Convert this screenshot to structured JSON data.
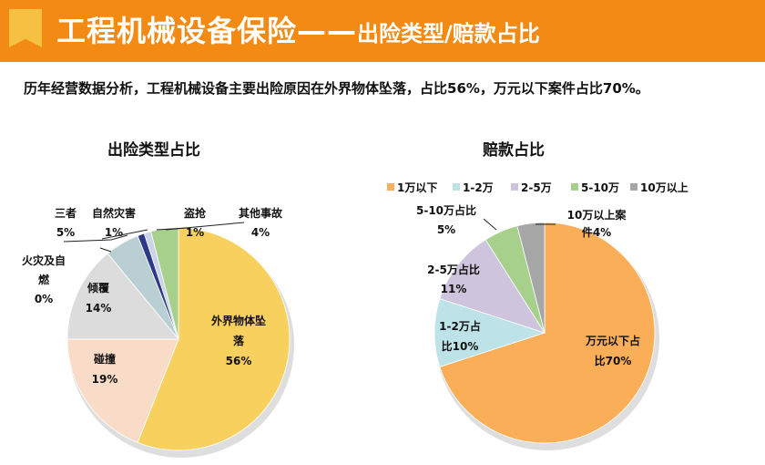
{
  "header": {
    "title_main": "工程机械设备保险——",
    "title_sub": "出险类型/赔款占比"
  },
  "summary": "历年经营数据分析，工程机械设备主要出险原因在外界物体坠落，占比56%，万元以下案件占比70%。",
  "chart_data": [
    {
      "type": "pie",
      "title": "出险类型占比",
      "slices": [
        {
          "label": "外界物体坠落",
          "value": 56,
          "color": "#F7D05E",
          "label_text": "外界物体坠落 56%"
        },
        {
          "label": "碰撞",
          "value": 19,
          "color": "#F9DCC7",
          "label_text": "碰撞 19%"
        },
        {
          "label": "倾覆",
          "value": 14,
          "color": "#DCDCDC",
          "label_text": "倾覆 14%"
        },
        {
          "label": "火灾及自燃",
          "value": 0,
          "color": "#3A3A3A",
          "label_text": "火灾及自燃 0%"
        },
        {
          "label": "三者",
          "value": 5,
          "color": "#B9CFD3",
          "label_text": "三者 5%"
        },
        {
          "label": "自然灾害",
          "value": 1,
          "color": "#2E3A87",
          "label_text": "自然灾害 1%"
        },
        {
          "label": "盗抢",
          "value": 1,
          "color": "#CBD3E6",
          "label_text": "盗抢 1%"
        },
        {
          "label": "其他事故",
          "value": 4,
          "color": "#A8D08D",
          "label_text": "其他事故 4%"
        }
      ]
    },
    {
      "type": "pie",
      "title": "赔款占比",
      "legend": [
        "1万以下",
        "1-2万",
        "2-5万",
        "5-10万",
        "10万以上"
      ],
      "legend_position": "top",
      "slices": [
        {
          "label": "1万以下",
          "value": 70,
          "color": "#F9AE57",
          "label_text": "万元以下占比70%"
        },
        {
          "label": "1-2万",
          "value": 10,
          "color": "#BDE3E8",
          "label_text": "1-2万占比10%"
        },
        {
          "label": "2-5万",
          "value": 11,
          "color": "#CFC4DD",
          "label_text": "2-5万占比 11%"
        },
        {
          "label": "5-10万",
          "value": 5,
          "color": "#A8D08D",
          "label_text": "5-10万占比 5%"
        },
        {
          "label": "10万以上",
          "value": 4,
          "color": "#A6A6A6",
          "label_text": "10万以上案件4%"
        }
      ]
    }
  ]
}
